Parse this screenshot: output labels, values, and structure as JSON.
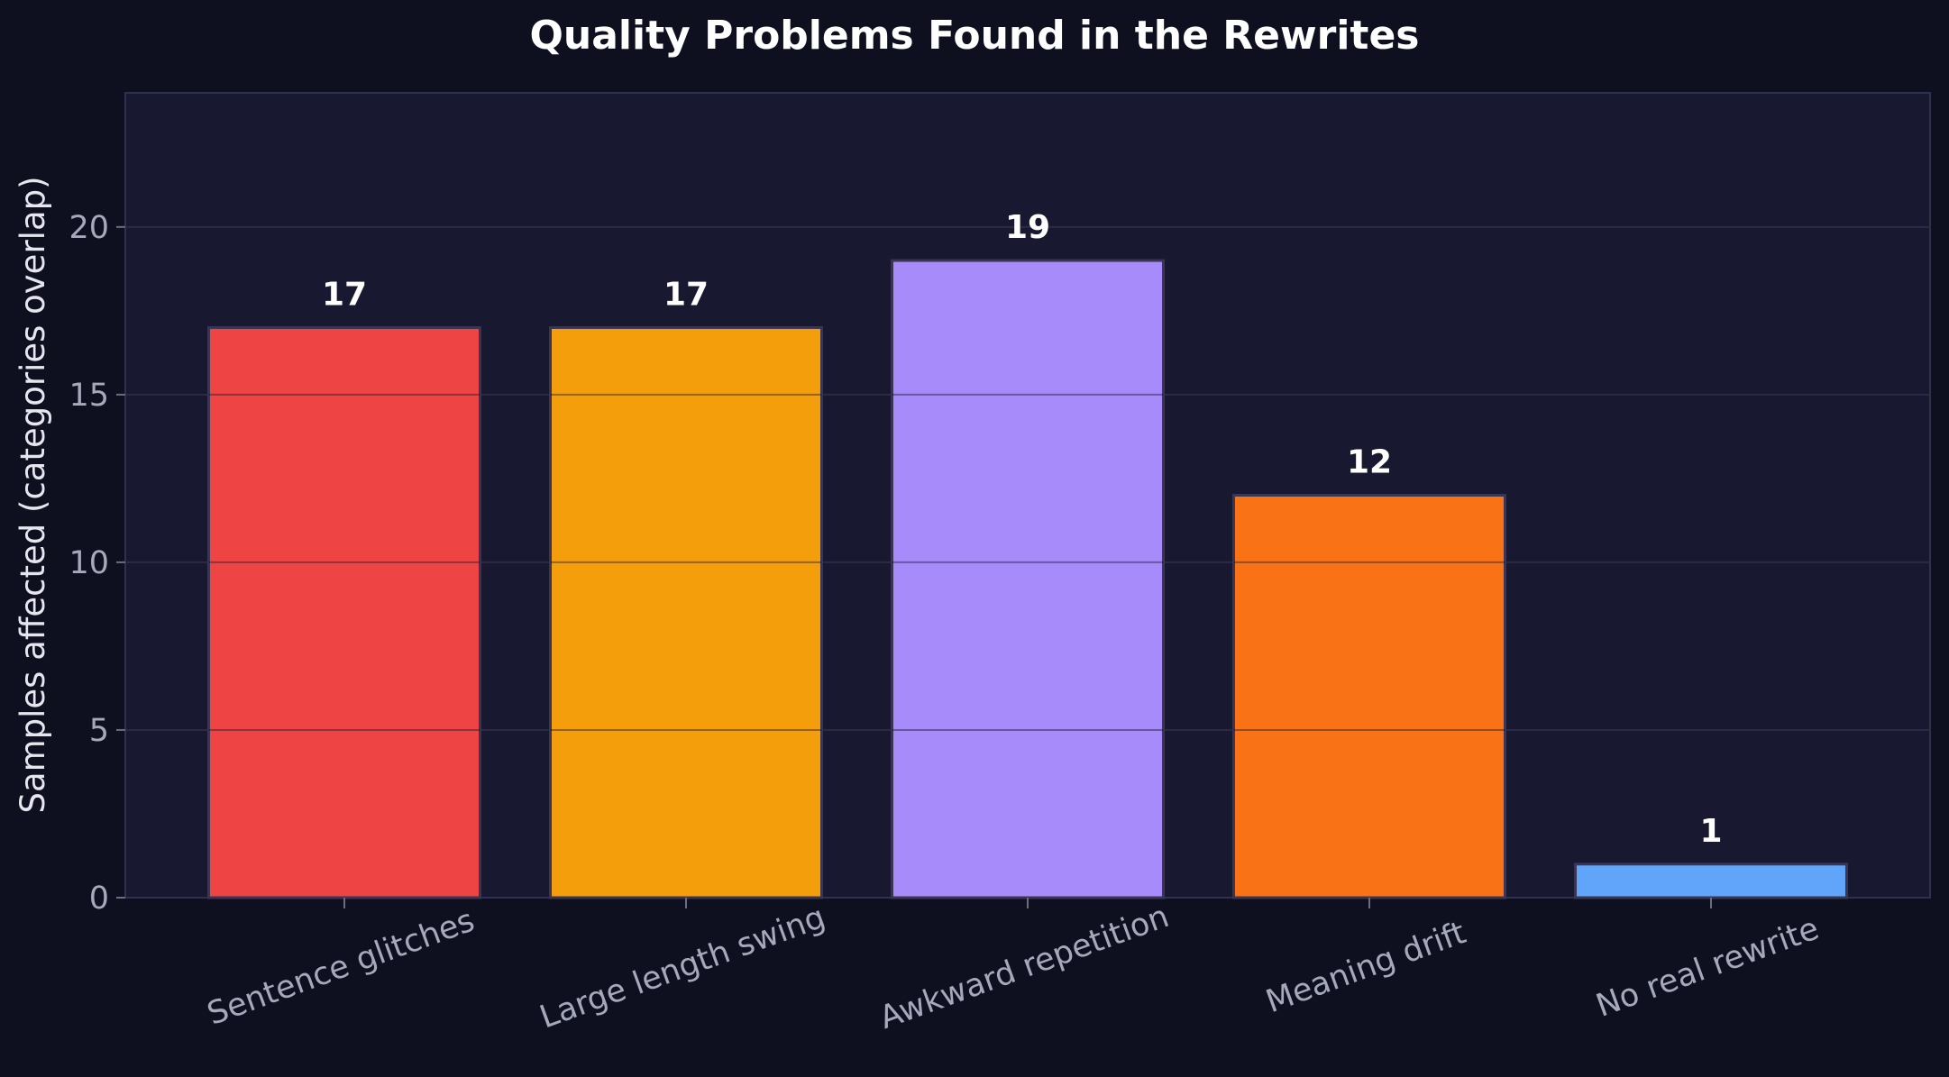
{
  "chart_data": {
    "type": "bar",
    "title": "Quality Problems Found in the Rewrites",
    "xlabel": "",
    "ylabel": "Samples affected (categories overlap)",
    "categories": [
      "Sentence glitches",
      "Large length swing",
      "Awkward repetition",
      "Meaning drift",
      "No real rewrite"
    ],
    "values": [
      17,
      17,
      19,
      12,
      1
    ],
    "data_labels": [
      "17",
      "17",
      "19",
      "12",
      "1"
    ],
    "bar_colors": [
      "#ef4444",
      "#f59e0b",
      "#a78bfa",
      "#f97316",
      "#60a5fa"
    ],
    "ylim": [
      0,
      24
    ],
    "yticks": [
      0,
      5,
      10,
      15,
      20
    ],
    "ytick_labels": [
      "0",
      "5",
      "10",
      "15",
      "20"
    ],
    "grid": true,
    "legend": "none"
  },
  "theme": {
    "background": "#0e1020",
    "plot_background": "#181830",
    "grid_color": "#2a2a44",
    "axis_color": "#2f3150"
  }
}
